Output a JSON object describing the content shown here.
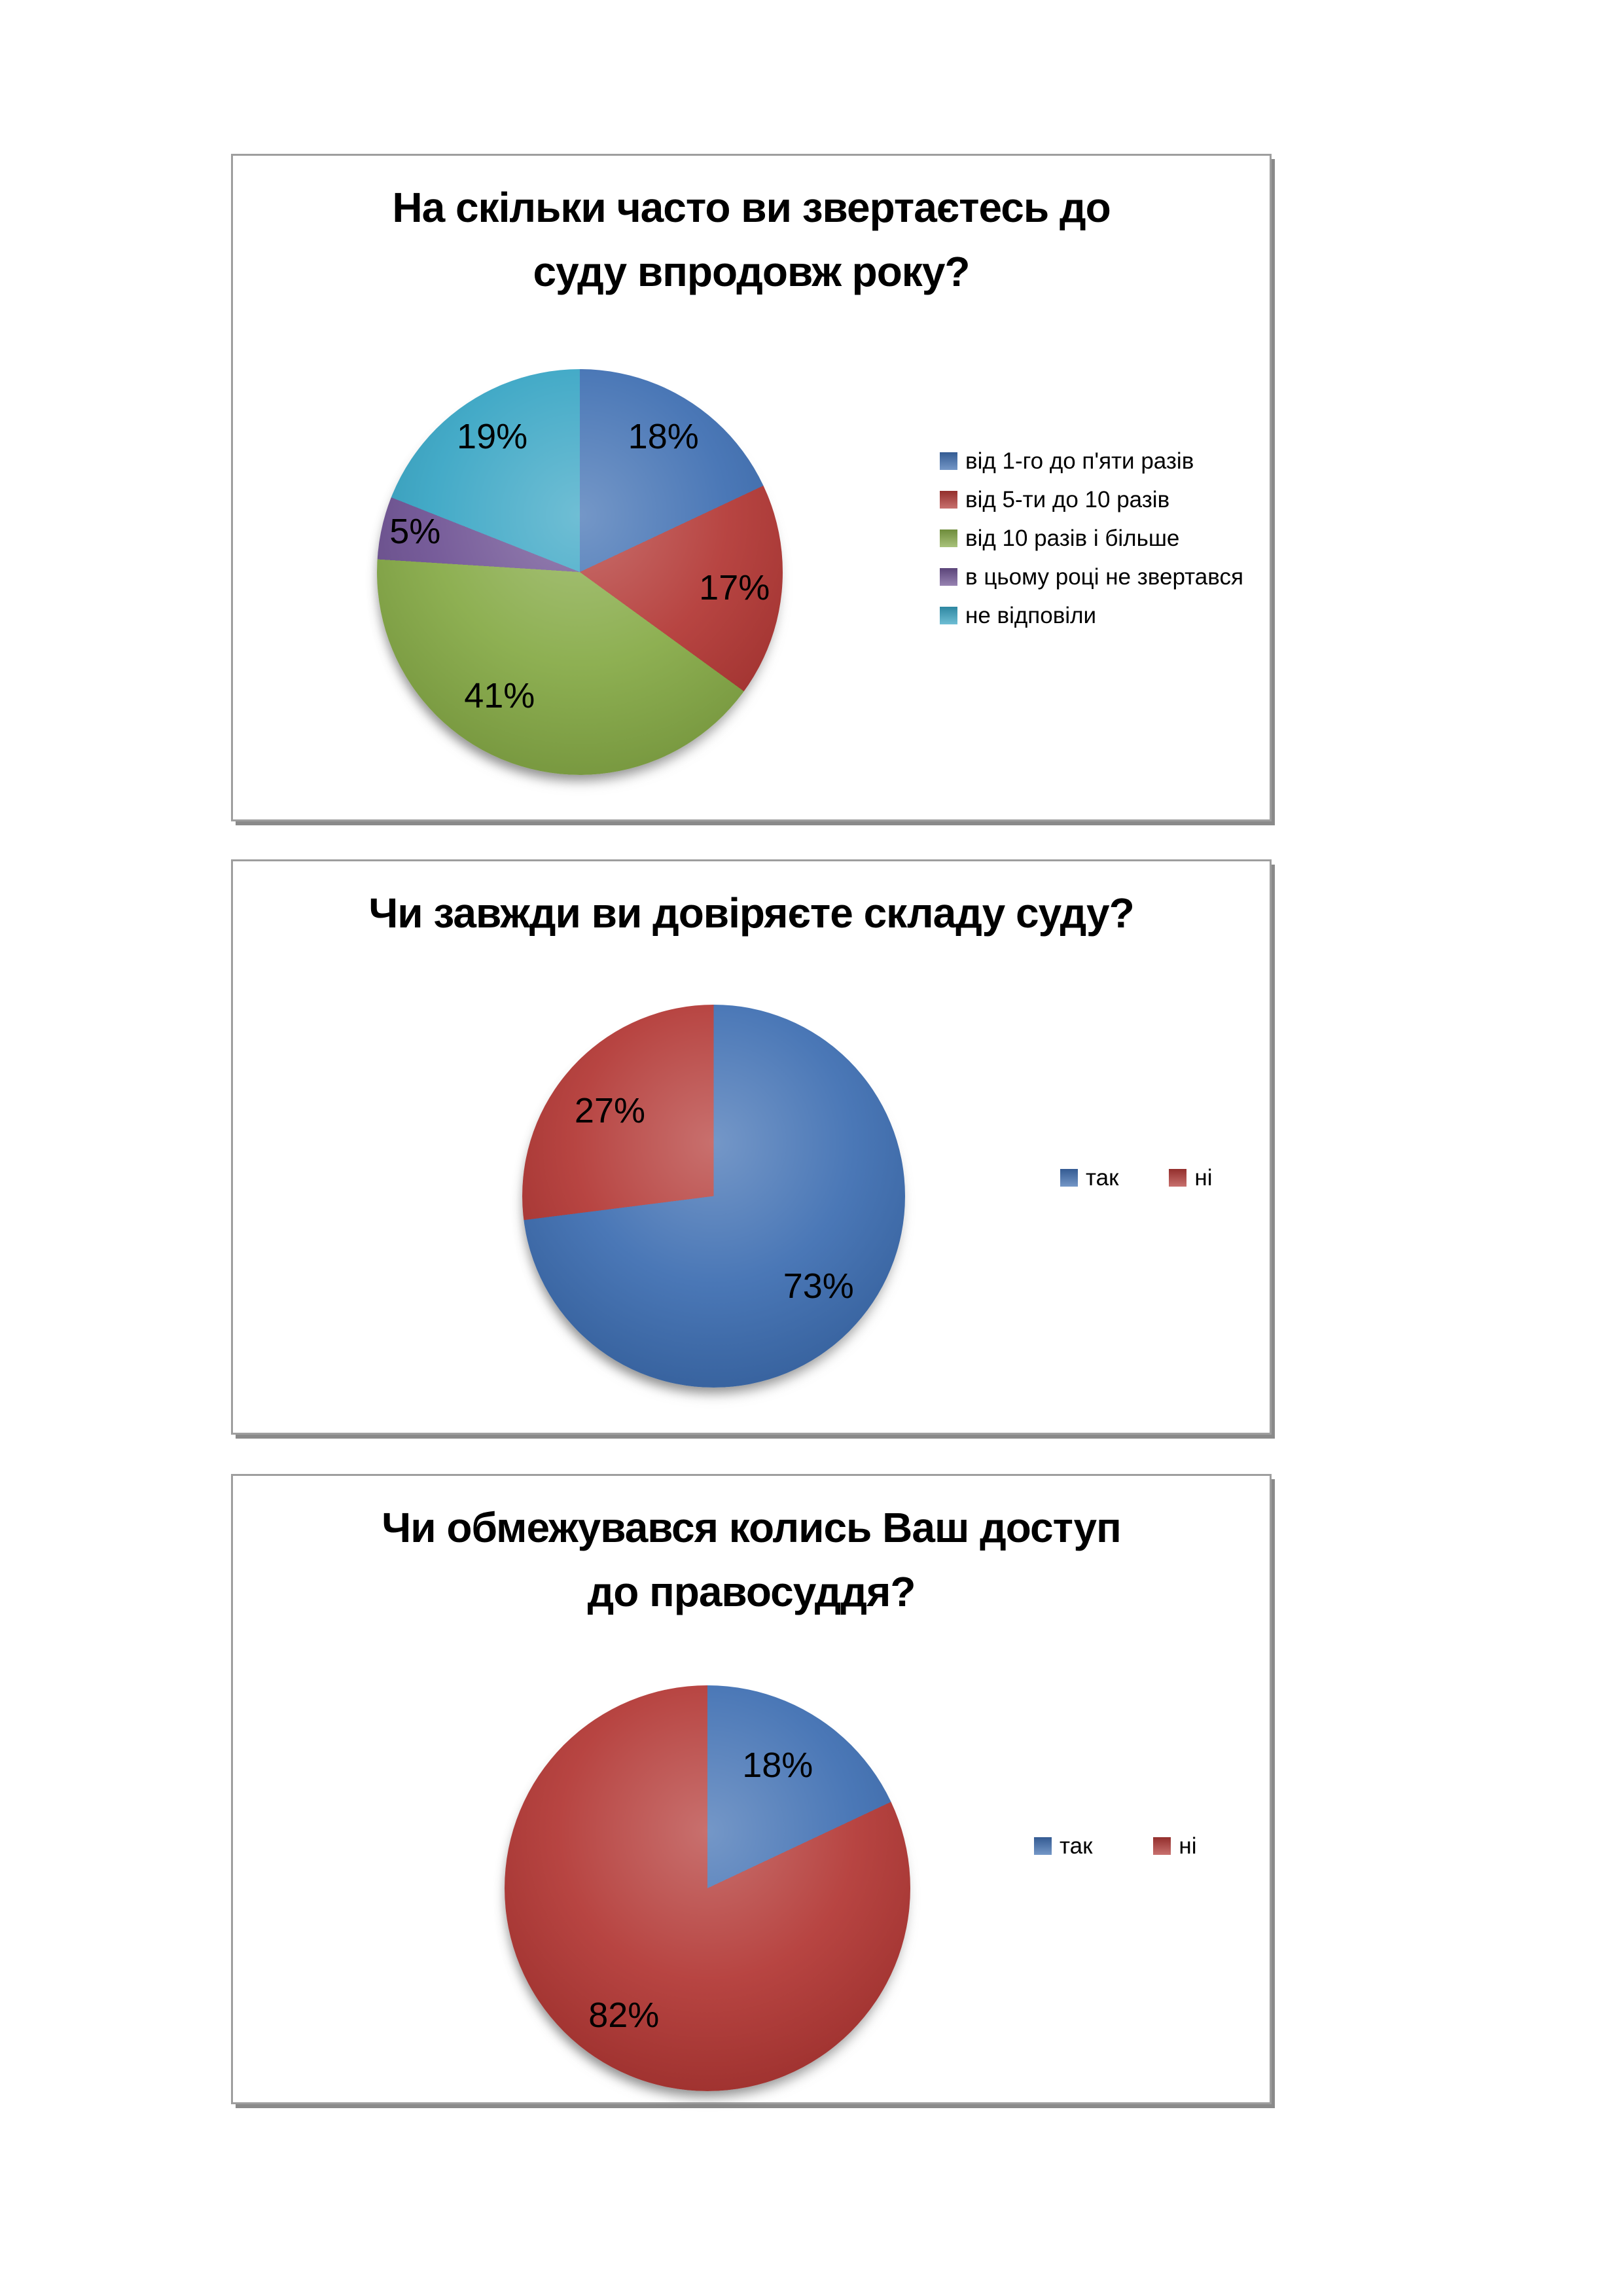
{
  "palette": {
    "blue": "#3F6FB2",
    "red": "#B33936",
    "green": "#87AB48",
    "purple": "#6F5394",
    "cyan": "#38A5C4"
  },
  "chart_data": [
    {
      "type": "pie",
      "title": "На скільки часто ви звертаєтесь до суду впродовж року?",
      "title_lines": [
        "На скільки часто ви звертаєтесь до",
        "суду впродовж року?"
      ],
      "categories": [
        "від 1-го до п'яти разів",
        "від 5-ти до 10 разів",
        "від 10 разів і більше",
        "в цьому році не звертався",
        "не відповіли"
      ],
      "values": [
        18,
        17,
        41,
        5,
        19
      ],
      "labels": [
        "18%",
        "17%",
        "41%",
        "5%",
        "19%"
      ],
      "colors": [
        "blue",
        "red",
        "green",
        "purple",
        "cyan"
      ],
      "legend_position": "right",
      "start_angle_deg": 0,
      "direction": "clockwise"
    },
    {
      "type": "pie",
      "title": "Чи завжди ви довіряєте складу суду?",
      "title_lines": [
        "Чи завжди ви довіряєте складу суду?"
      ],
      "categories": [
        "так",
        "ні"
      ],
      "values": [
        73,
        27
      ],
      "labels": [
        "73%",
        "27%"
      ],
      "colors": [
        "blue",
        "red"
      ],
      "legend_position": "right",
      "start_angle_deg": 0,
      "direction": "clockwise"
    },
    {
      "type": "pie",
      "title": "Чи обмежувався колись Ваш доступ до правосуддя?",
      "title_lines": [
        "Чи обмежувався колись Ваш доступ",
        "до правосуддя?"
      ],
      "categories": [
        "так",
        "ні"
      ],
      "values": [
        18,
        82
      ],
      "labels": [
        "18%",
        "82%"
      ],
      "colors": [
        "blue",
        "red"
      ],
      "legend_position": "right",
      "start_angle_deg": 0,
      "direction": "clockwise"
    }
  ]
}
